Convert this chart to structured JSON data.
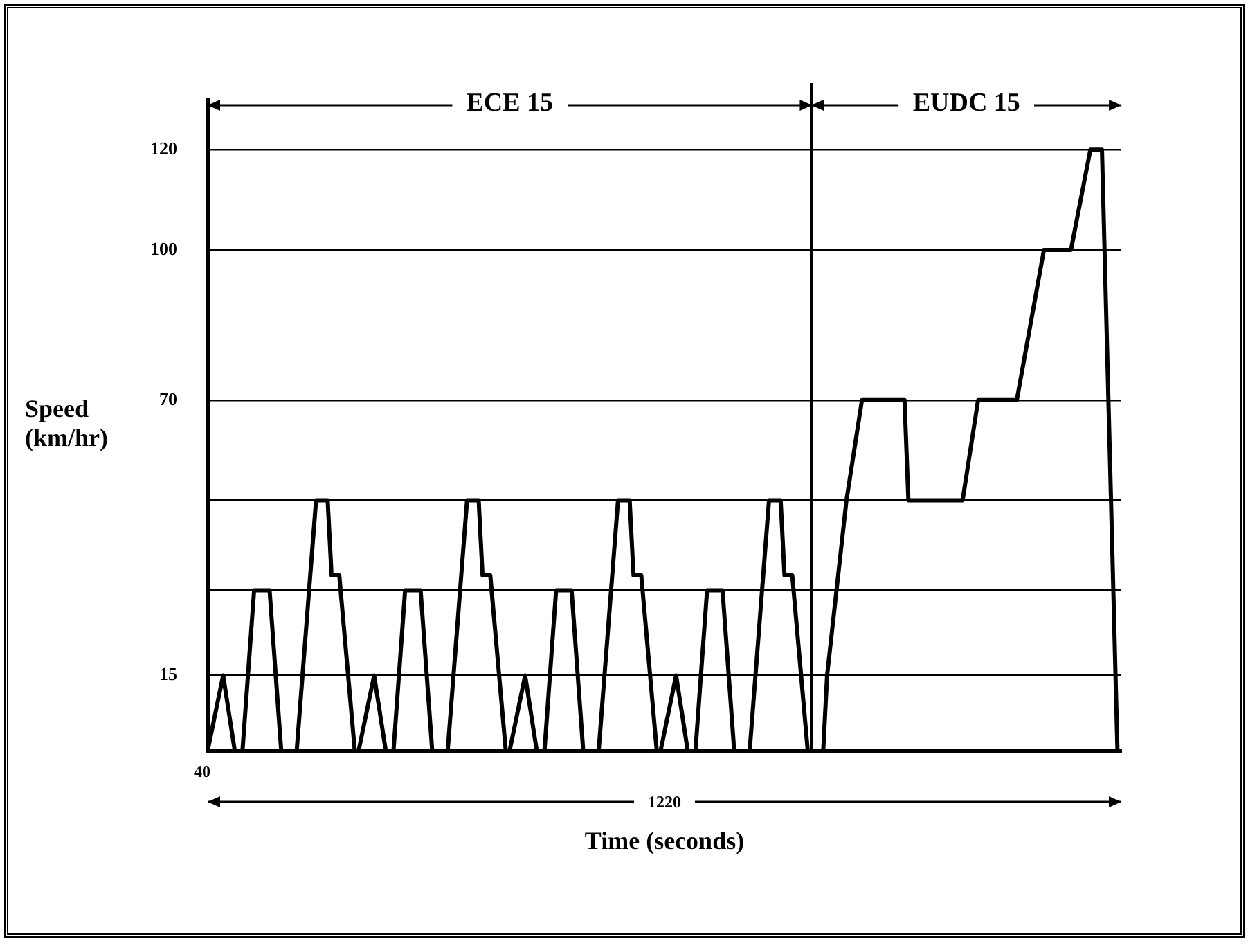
{
  "chart_data": {
    "type": "line",
    "xlabel": "Time (seconds)",
    "ylabel": "Speed (km/hr)",
    "color": "#000000",
    "marker": "none",
    "line_style": "solid",
    "grid": "y",
    "tick_labels": "y",
    "categories": [
      null,
      null,
      null,
      null,
      null,
      null,
      null,
      null,
      null,
      null,
      null,
      null,
      null,
      null,
      null,
      null,
      null,
      null,
      null,
      null,
      null,
      null,
      null,
      null,
      null,
      null,
      null,
      null,
      null,
      null,
      null,
      null,
      null,
      null,
      null,
      null,
      null,
      null,
      null,
      null,
      null,
      null,
      null,
      null,
      null,
      null,
      null,
      null,
      null,
      null,
      null,
      null,
      null,
      null,
      null,
      null,
      null,
      null,
      null,
      null,
      null,
      null,
      null,
      null,
      null,
      null,
      null,
      null,
      null,
      null,
      null,
      null,
      null,
      null,
      null,
      null,
      null,
      null,
      null,
      null,
      null,
      null,
      null,
      null,
      null,
      null,
      null,
      null,
      null,
      null,
      null,
      null,
      null,
      null,
      null,
      null,
      null,
      null,
      null,
      null,
      null,
      null,
      null,
      null,
      null,
      null,
      null,
      null,
      null,
      null,
      null,
      null,
      null,
      null,
      null,
      null,
      null,
      null,
      null,
      null,
      null,
      null,
      null,
      null,
      null,
      null,
      null,
      null,
      null,
      null,
      null,
      null,
      null,
      null,
      null,
      null,
      null,
      null,
      null,
      null,
      null,
      null,
      null,
      null,
      null,
      null,
      null,
      null,
      null,
      null,
      null,
      null,
      null,
      null,
      null,
      null,
      null,
      null,
      null,
      null,
      null,
      null,
      null,
      null,
      null,
      null,
      null,
      null,
      null,
      null,
      null,
      null,
      null,
      null,
      null,
      null,
      null,
      null,
      null,
      null,
      null,
      null,
      null,
      null,
      null,
      null,
      null,
      null,
      null,
      null,
      null,
      null,
      null,
      null,
      null,
      null,
      null,
      null,
      null,
      null,
      null,
      null,
      null,
      null,
      null,
      null,
      null,
      null,
      null,
      null,
      null,
      null,
      null,
      null,
      null,
      null,
      null,
      null,
      null,
      null,
      null,
      null,
      null,
      null,
      null,
      null,
      null,
      null,
      null,
      null,
      null,
      null,
      null,
      null,
      null,
      null,
      null
    ],
    "values": [
      0,
      null,
      null,
      null,
      15,
      null,
      null,
      0,
      null,
      0,
      null,
      null,
      32,
      null,
      null,
      null,
      32,
      null,
      null,
      0,
      null,
      null,
      null,
      0,
      null,
      null,
      null,
      null,
      50,
      null,
      null,
      50,
      35,
      null,
      35,
      null,
      null,
      null,
      0,
      0,
      null,
      null,
      null,
      15,
      null,
      null,
      0,
      null,
      0,
      null,
      null,
      32,
      null,
      null,
      null,
      32,
      null,
      null,
      0,
      null,
      null,
      null,
      0,
      null,
      null,
      null,
      null,
      50,
      null,
      null,
      50,
      35,
      null,
      35,
      null,
      null,
      null,
      0,
      0,
      null,
      null,
      null,
      15,
      null,
      null,
      0,
      null,
      0,
      null,
      null,
      32,
      null,
      null,
      null,
      32,
      null,
      null,
      0,
      null,
      null,
      null,
      0,
      null,
      null,
      null,
      null,
      50,
      null,
      null,
      50,
      35,
      null,
      35,
      null,
      null,
      null,
      0,
      0,
      null,
      null,
      null,
      15,
      null,
      null,
      0,
      null,
      0,
      null,
      null,
      32,
      null,
      null,
      null,
      32,
      null,
      null,
      0,
      null,
      null,
      null,
      0,
      null,
      null,
      null,
      null,
      50,
      null,
      null,
      50,
      35,
      null,
      35,
      null,
      null,
      null,
      0,
      null,
      null,
      null,
      0,
      15,
      null,
      null,
      null,
      null,
      50,
      null,
      null,
      null,
      70,
      null,
      null,
      null,
      null,
      null,
      null,
      null,
      null,
      null,
      null,
      70,
      50,
      null,
      null,
      null,
      null,
      null,
      null,
      null,
      null,
      null,
      null,
      null,
      null,
      null,
      50,
      null,
      null,
      null,
      70,
      null,
      null,
      null,
      null,
      null,
      null,
      null,
      null,
      null,
      70,
      null,
      null,
      null,
      null,
      null,
      null,
      100,
      null,
      null,
      null,
      null,
      null,
      null,
      100,
      null,
      null,
      null,
      null,
      120,
      null,
      null,
      120,
      null,
      null,
      null,
      0,
      0
    ],
    "ylim": [
      0,
      130
    ],
    "yticks": [
      15,
      {
        "value": 32,
        "label": null
      },
      {
        "value": 50,
        "label": null
      },
      70,
      100,
      120
    ],
    "annotations": [
      "ECE 15",
      "EUDC 15",
      "40",
      "1220"
    ]
  }
}
